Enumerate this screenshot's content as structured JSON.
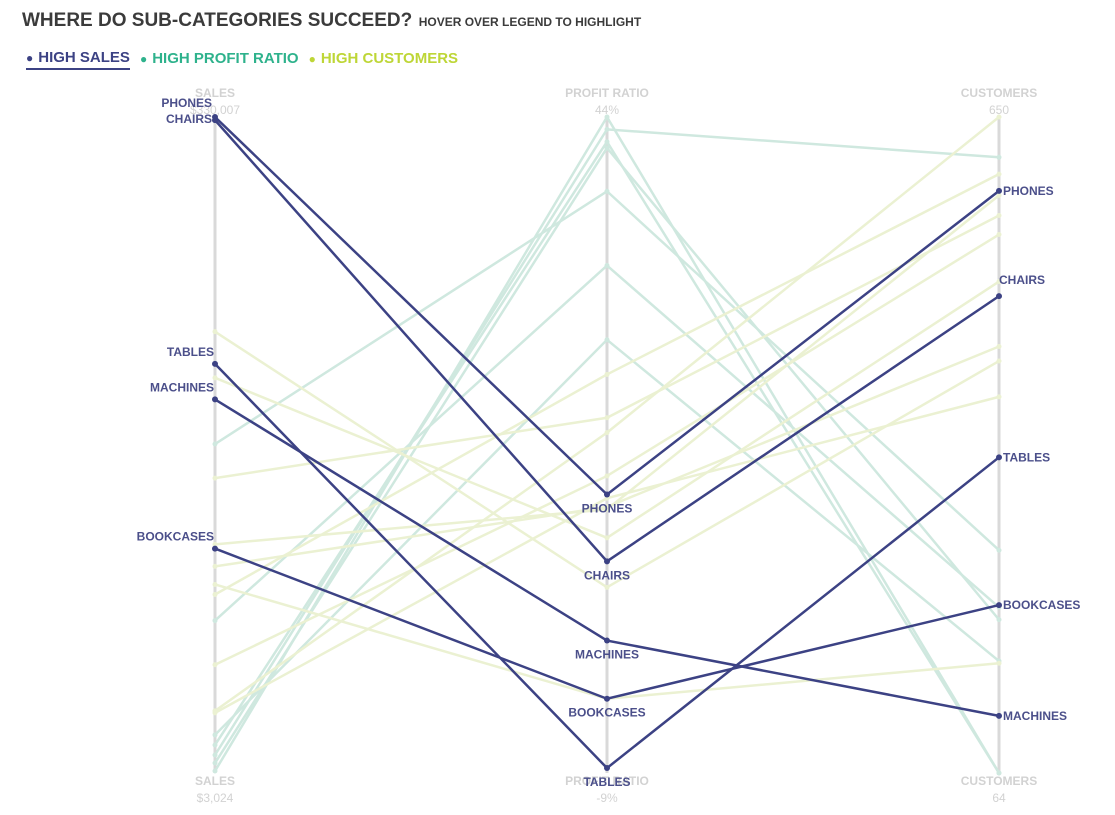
{
  "title": {
    "main": "WHERE DO SUB-CATEGORIES SUCCEED?",
    "sub": "HOVER OVER LEGEND TO HIGHLIGHT"
  },
  "legend": [
    {
      "key": "sales",
      "label": "HIGH SALES",
      "color": "#3c4284"
    },
    {
      "key": "profit",
      "label": "HIGH PROFIT RATIO",
      "color": "#2eb28c"
    },
    {
      "key": "customers",
      "label": "HIGH CUSTOMERS",
      "color": "#bed637"
    }
  ],
  "colors": {
    "highlight": "#3c4284",
    "profit_faded": "#cfe8df",
    "customers_faded": "#ebf1d2",
    "axis": "#d9d9d9"
  },
  "chart_data": {
    "type": "parallel_coordinates",
    "title": "WHERE DO SUB-CATEGORIES SUCCEED?",
    "highlighted_group": "sales",
    "axes": [
      {
        "key": "sales",
        "title": "SALES",
        "max_label": "$330,007",
        "min_label": "$3,024",
        "range": [
          3024,
          330007
        ]
      },
      {
        "key": "profit",
        "title": "PROFIT RATIO",
        "max_label": "44%",
        "min_label": "-9%",
        "range": [
          -0.09,
          0.44
        ]
      },
      {
        "key": "customers",
        "title": "CUSTOMERS",
        "max_label": "650",
        "min_label": "64",
        "range": [
          64,
          650
        ]
      }
    ],
    "series": [
      {
        "name": "PHONES",
        "group": "sales",
        "sales": 330007,
        "profit": 0.135,
        "customers": 584
      },
      {
        "name": "CHAIRS",
        "group": "sales",
        "sales": 328449,
        "profit": 0.081,
        "customers": 490
      },
      {
        "name": "TABLES",
        "group": "sales",
        "sales": 206966,
        "profit": -0.086,
        "customers": 346
      },
      {
        "name": "MACHINES",
        "group": "sales",
        "sales": 189239,
        "profit": 0.017,
        "customers": 115
      },
      {
        "name": "BOOKCASES",
        "group": "sales",
        "sales": 114880,
        "profit": -0.03,
        "customers": 214
      },
      {
        "name": "",
        "group": "profit",
        "sales": 12000,
        "profit": 0.43,
        "customers": 614
      },
      {
        "name": "",
        "group": "profit",
        "sales": 8000,
        "profit": 0.415,
        "customers": 201
      },
      {
        "name": "",
        "group": "profit",
        "sales": 17000,
        "profit": 0.42,
        "customers": 64
      },
      {
        "name": "",
        "group": "profit",
        "sales": 167000,
        "profit": 0.38,
        "customers": 263
      },
      {
        "name": "",
        "group": "profit",
        "sales": 79000,
        "profit": 0.32,
        "customers": 212
      },
      {
        "name": "",
        "group": "profit",
        "sales": 22000,
        "profit": 0.26,
        "customers": 164
      },
      {
        "name": "",
        "group": "profit",
        "sales": 4000,
        "profit": 0.44,
        "customers": 64
      },
      {
        "name": "",
        "group": "customers",
        "sales": 223000,
        "profit": 0.06,
        "customers": 432
      },
      {
        "name": "",
        "group": "customers",
        "sales": 200000,
        "profit": 0.1,
        "customers": 503
      },
      {
        "name": "",
        "group": "customers",
        "sales": 150000,
        "profit": 0.197,
        "customers": 562
      },
      {
        "name": "",
        "group": "customers",
        "sales": 106000,
        "profit": 0.125,
        "customers": 445
      },
      {
        "name": "",
        "group": "customers",
        "sales": 92000,
        "profit": 0.232,
        "customers": 599
      },
      {
        "name": "",
        "group": "customers",
        "sales": 34000,
        "profit": 0.185,
        "customers": 650
      },
      {
        "name": "",
        "group": "customers",
        "sales": 57000,
        "profit": 0.15,
        "customers": 545
      },
      {
        "name": "",
        "group": "customers",
        "sales": 117000,
        "profit": 0.123,
        "customers": 580
      },
      {
        "name": "",
        "group": "customers",
        "sales": 97000,
        "profit": -0.03,
        "customers": 162
      },
      {
        "name": "",
        "group": "customers",
        "sales": 33000,
        "profit": 0.132,
        "customers": 400
      }
    ]
  }
}
